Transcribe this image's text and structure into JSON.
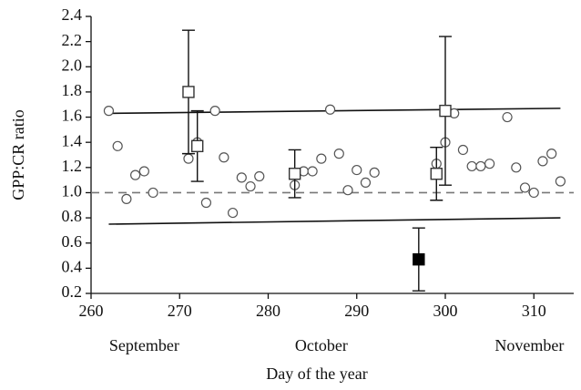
{
  "chart_data": {
    "type": "scatter",
    "x_label": "Day of the year",
    "y_label": "GPP:CR ratio",
    "xlim": [
      260,
      314.5
    ],
    "ylim": [
      0.2,
      2.4
    ],
    "xticks": [
      260,
      270,
      280,
      290,
      300,
      310
    ],
    "yticks": [
      0.2,
      0.4,
      0.6,
      0.8,
      {
        "value": 1,
        "label": "1.0"
      },
      1.2,
      1.4,
      1.6,
      1.8,
      {
        "value": 2,
        "label": "2.0"
      },
      2.2,
      2.4
    ],
    "month_labels": [
      {
        "text": "September",
        "x": 266
      },
      {
        "text": "October",
        "x": 286
      },
      {
        "text": "November",
        "x": 309.5
      }
    ],
    "points": {
      "color": "#555555",
      "x": [
        262,
        263,
        264,
        265,
        266,
        267,
        271,
        272,
        273,
        274,
        275,
        276,
        277,
        278,
        279,
        283,
        284,
        285,
        286,
        287,
        288,
        289,
        290,
        291,
        292,
        299,
        300,
        301,
        302,
        303,
        304,
        305,
        307,
        308,
        309,
        310,
        311,
        312,
        313
      ],
      "values": [
        1.65,
        1.37,
        0.95,
        1.14,
        1.17,
        1.0,
        1.27,
        1.4,
        0.92,
        1.65,
        1.28,
        0.84,
        1.12,
        1.05,
        1.13,
        1.06,
        1.17,
        1.17,
        1.27,
        1.66,
        1.31,
        1.02,
        1.18,
        1.08,
        1.16,
        1.23,
        1.4,
        1.63,
        1.34,
        1.21,
        1.21,
        1.23,
        1.6,
        1.2,
        1.04,
        1.0,
        1.25,
        1.31,
        1.09
      ]
    },
    "open_squares": {
      "color": "#333333",
      "x": [
        271,
        272,
        283,
        299,
        300
      ],
      "values": [
        1.8,
        1.37,
        1.15,
        1.15,
        1.65
      ],
      "errors": [
        0.49,
        0.28,
        0.19,
        0.21,
        0.59
      ]
    },
    "filled_squares": {
      "color": "#000000",
      "x": [
        297
      ],
      "values": [
        0.47
      ],
      "errors": [
        0.25
      ]
    },
    "lines": [
      {
        "x": [
          262,
          313
        ],
        "values": [
          1.63,
          1.67
        ],
        "color": "#111111",
        "dashed": false
      },
      {
        "x": [
          262,
          313
        ],
        "values": [
          0.75,
          0.8
        ],
        "color": "#111111",
        "dashed": false
      },
      {
        "x": [
          260,
          314.5
        ],
        "values": [
          1,
          1
        ],
        "color": "#777777",
        "dashed": true
      }
    ]
  }
}
